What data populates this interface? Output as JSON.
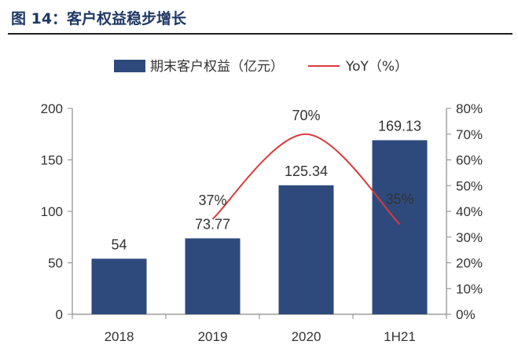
{
  "figure": {
    "title": "图 14：客户权益稳步增长"
  },
  "chart_data": {
    "type": "bar",
    "categories": [
      "2018",
      "2019",
      "2020",
      "1H21"
    ],
    "series": [
      {
        "name": "期末客户权益（亿元）",
        "type": "bar",
        "axis": "left",
        "values": [
          54,
          73.77,
          125.34,
          169.13
        ],
        "labels": [
          "54",
          "73.77",
          "125.34",
          "169.13"
        ],
        "color": "#2e4a7d"
      },
      {
        "name": "YoY（%）",
        "type": "line",
        "axis": "right",
        "x": [
          "2019",
          "2020",
          "1H21"
        ],
        "values": [
          37,
          70,
          35
        ],
        "labels": [
          "37%",
          "70%",
          "35%"
        ],
        "color": "#d93b3b"
      }
    ],
    "y_left": {
      "ylim": [
        0,
        200
      ],
      "ticks": [
        "0",
        "50",
        "100",
        "150",
        "200"
      ]
    },
    "y_right": {
      "ylim": [
        0,
        80
      ],
      "ticks": [
        "0%",
        "10%",
        "20%",
        "30%",
        "40%",
        "50%",
        "60%",
        "70%",
        "80%"
      ]
    },
    "legend": "top",
    "grid": false
  }
}
